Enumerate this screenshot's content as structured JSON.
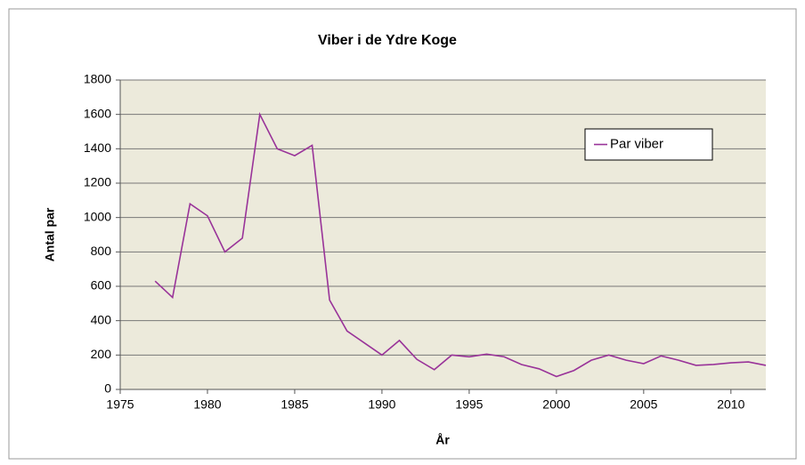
{
  "chart_data": {
    "type": "line",
    "title": "Viber i de Ydre Koge",
    "x_label": "År",
    "y_label": "Antal par",
    "x": [
      1977,
      1978,
      1979,
      1980,
      1981,
      1982,
      1983,
      1984,
      1985,
      1986,
      1987,
      1988,
      1989,
      1990,
      1991,
      1992,
      1993,
      1994,
      1995,
      1996,
      1997,
      1998,
      1999,
      2000,
      2001,
      2002,
      2003,
      2004,
      2005,
      2006,
      2007,
      2008,
      2009,
      2010,
      2011,
      2012
    ],
    "series": [
      {
        "name": "Par viber",
        "color": "#993399",
        "values": [
          630,
          535,
          1080,
          1010,
          800,
          880,
          1600,
          1400,
          1360,
          1420,
          520,
          340,
          270,
          200,
          285,
          175,
          115,
          200,
          190,
          205,
          190,
          145,
          120,
          75,
          110,
          170,
          200,
          170,
          150,
          195,
          170,
          140,
          145,
          155,
          160,
          140
        ]
      }
    ],
    "xlim": [
      1975,
      2012
    ],
    "xticks": [
      1975,
      1980,
      1985,
      1990,
      1995,
      2000,
      2005,
      2010
    ],
    "ylim": [
      0,
      1800
    ],
    "yticks": [
      0,
      200,
      400,
      600,
      800,
      1000,
      1200,
      1400,
      1600,
      1800
    ],
    "grid": true,
    "legend": "top-right"
  }
}
